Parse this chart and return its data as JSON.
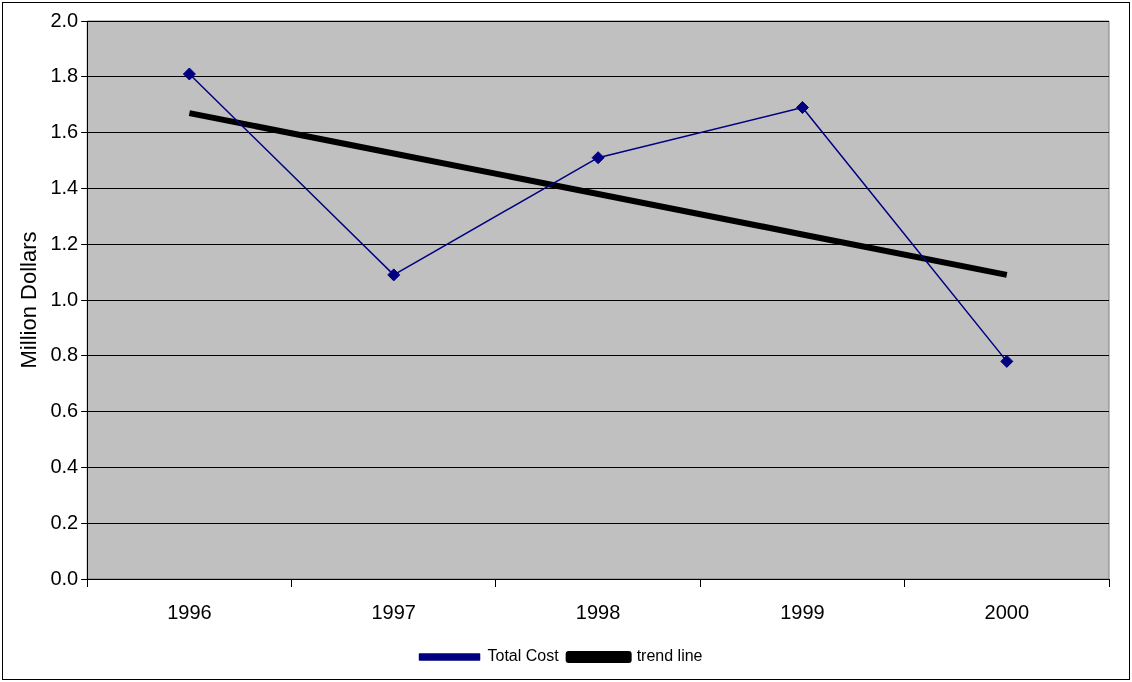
{
  "chart_data": {
    "type": "line",
    "ylabel": "Million Dollars",
    "categories": [
      "1996",
      "1997",
      "1998",
      "1999",
      "2000"
    ],
    "series": [
      {
        "name": "Total Cost",
        "color": "#000080",
        "values": [
          1.81,
          1.09,
          1.51,
          1.69,
          0.78
        ],
        "marker": "diamond"
      },
      {
        "name": "trend line",
        "color": "#000000",
        "values": [
          1.67,
          1.525,
          1.38,
          1.235,
          1.09
        ],
        "marker": "none"
      }
    ],
    "ylim": [
      0,
      2
    ],
    "yticks": [
      {
        "value": 0,
        "label": "0.0"
      },
      0.2,
      0.4,
      0.6,
      0.8,
      {
        "value": 1,
        "label": "1.0"
      },
      1.2,
      1.4,
      1.6,
      1.8,
      {
        "value": 2,
        "label": "2.0"
      }
    ],
    "grid": "y",
    "legend": "bottom"
  }
}
